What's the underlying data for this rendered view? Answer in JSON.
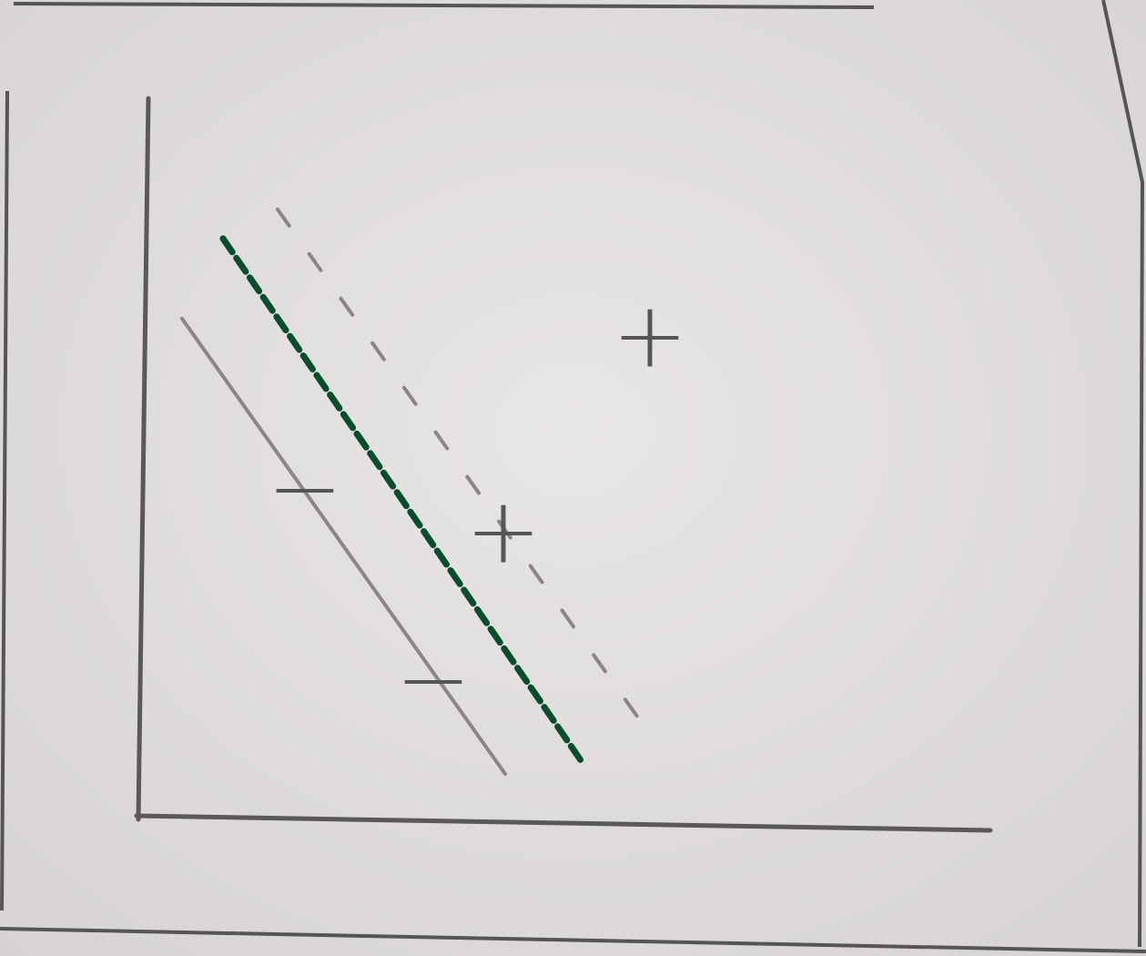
{
  "points": [
    {
      "label": "+"
    },
    {
      "label": "+"
    },
    {
      "label": "−"
    },
    {
      "label": "−"
    }
  ]
}
